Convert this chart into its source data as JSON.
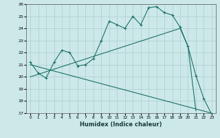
{
  "xlabel": "Humidex (Indice chaleur)",
  "xlim": [
    -0.5,
    23.5
  ],
  "ylim": [
    17,
    26
  ],
  "xticks": [
    0,
    1,
    2,
    3,
    4,
    5,
    6,
    7,
    8,
    9,
    10,
    11,
    12,
    13,
    14,
    15,
    16,
    17,
    18,
    19,
    20,
    21,
    22,
    23
  ],
  "yticks": [
    17,
    18,
    19,
    20,
    21,
    22,
    23,
    24,
    25,
    26
  ],
  "bg_color": "#cde8e8",
  "grid_color": "#aacece",
  "line_color": "#1a7068",
  "line1_x": [
    0,
    1,
    2,
    3,
    4,
    5,
    6,
    7,
    8,
    9,
    10,
    11,
    12,
    13,
    14,
    15,
    16,
    17,
    18,
    19,
    20,
    21,
    22,
    23
  ],
  "line1_y": [
    21.2,
    20.3,
    19.9,
    21.2,
    22.2,
    22.0,
    20.9,
    21.0,
    21.5,
    23.0,
    24.6,
    24.3,
    24.0,
    25.0,
    24.3,
    25.7,
    25.8,
    25.3,
    25.1,
    24.1,
    22.5,
    20.1,
    18.2,
    16.9
  ],
  "line2_x": [
    0,
    19,
    20,
    21
  ],
  "line2_y": [
    20.0,
    24.0,
    22.5,
    17.2
  ],
  "line3_x": [
    0,
    23
  ],
  "line3_y": [
    21.0,
    17.0
  ]
}
